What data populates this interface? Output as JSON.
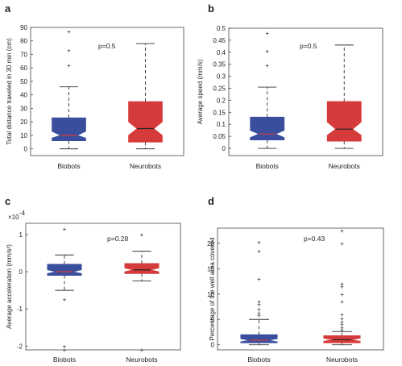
{
  "chart_data": [
    {
      "type": "box",
      "panel_label": "a",
      "ylabel": "Total distance traveled in 30 min (cm)",
      "ylim": [
        -5,
        90
      ],
      "yticks": [
        0,
        10,
        20,
        30,
        40,
        50,
        60,
        70,
        80,
        90
      ],
      "annotation": "p=0.5",
      "categories": [
        "Biobots",
        "Neurobots"
      ],
      "boxes": [
        {
          "whisker_low": 0,
          "q1": 6,
          "median": 10,
          "q3": 23,
          "whisker_high": 46,
          "outliers": [
            62,
            73,
            87
          ],
          "notch_low": 8,
          "notch_high": 13
        },
        {
          "whisker_low": 0,
          "q1": 5,
          "median": 15,
          "q3": 35,
          "whisker_high": 78,
          "outliers": [],
          "notch_low": 10,
          "notch_high": 20
        }
      ]
    },
    {
      "type": "box",
      "panel_label": "b",
      "ylabel": "Average speed (mm/s)",
      "ylim": [
        -0.03,
        0.5
      ],
      "yticks": [
        "0",
        "0.05",
        "0.1",
        "0.15",
        "0.2",
        "0.25",
        "0.3",
        "0.35",
        "0.4",
        "0.45",
        "0.5"
      ],
      "annotation": "p=0.5",
      "categories": [
        "Biobots",
        "Neurobots"
      ],
      "boxes": [
        {
          "whisker_low": 0,
          "q1": 0.035,
          "median": 0.06,
          "q3": 0.13,
          "whisker_high": 0.255,
          "outliers": [
            0.345,
            0.405,
            0.48
          ],
          "notch_low": 0.045,
          "notch_high": 0.075
        },
        {
          "whisker_low": 0,
          "q1": 0.03,
          "median": 0.08,
          "q3": 0.195,
          "whisker_high": 0.43,
          "outliers": [],
          "notch_low": 0.055,
          "notch_high": 0.11
        }
      ]
    },
    {
      "type": "box",
      "panel_label": "c",
      "ylabel": "Average acceleration (mm/s²)",
      "scale_label": "×10",
      "scale_exponent": "-4",
      "ylim": [
        -2.1,
        1.3
      ],
      "yticks": [
        "-2",
        "-1",
        "0",
        "1"
      ],
      "annotation": "p=0.28",
      "categories": [
        "Biobots",
        "Neurobots"
      ],
      "boxes": [
        {
          "whisker_low": -0.5,
          "q1": -0.1,
          "median": 0.0,
          "q3": 0.2,
          "whisker_high": 0.45,
          "outliers": [
            1.15,
            -0.75,
            -2.0,
            -2.1
          ],
          "notch_low": -0.05,
          "notch_high": 0.05
        },
        {
          "whisker_low": -0.25,
          "q1": -0.05,
          "median": 0.05,
          "q3": 0.22,
          "whisker_high": 0.55,
          "outliers": [
            1.0,
            -2.1
          ],
          "notch_low": 0.0,
          "notch_high": 0.1
        }
      ]
    },
    {
      "type": "box",
      "panel_label": "d",
      "ylabel": "Percentage of the well area covered",
      "ylim": [
        -1,
        23
      ],
      "yticks": [
        "0",
        "5",
        "10",
        "15",
        "20"
      ],
      "annotation": "p=0.43",
      "categories": [
        "Biobots",
        "Neurobots"
      ],
      "boxes": [
        {
          "whisker_low": 0,
          "q1": 0.4,
          "median": 0.9,
          "q3": 2.0,
          "whisker_high": 5.0,
          "outliers": [
            5.8,
            6.3,
            7.0,
            8.0,
            8.5,
            13.0,
            18.5,
            20.2
          ],
          "notch_low": 0.6,
          "notch_high": 1.2
        },
        {
          "whisker_low": 0,
          "q1": 0.4,
          "median": 1.0,
          "q3": 1.8,
          "whisker_high": 2.6,
          "outliers": [
            3.0,
            3.4,
            4.0,
            4.5,
            5.2,
            6.0,
            8.5,
            10.0,
            11.5,
            12.0,
            20.0,
            22.5
          ],
          "notch_low": 0.7,
          "notch_high": 1.3
        }
      ]
    }
  ],
  "colors": {
    "box_1": "#3a4e9e",
    "box_2": "#d63b3b",
    "median": "#d63b3b",
    "median_2": "#222222",
    "outlier": "#d63b3b",
    "whisker": "#333333"
  }
}
